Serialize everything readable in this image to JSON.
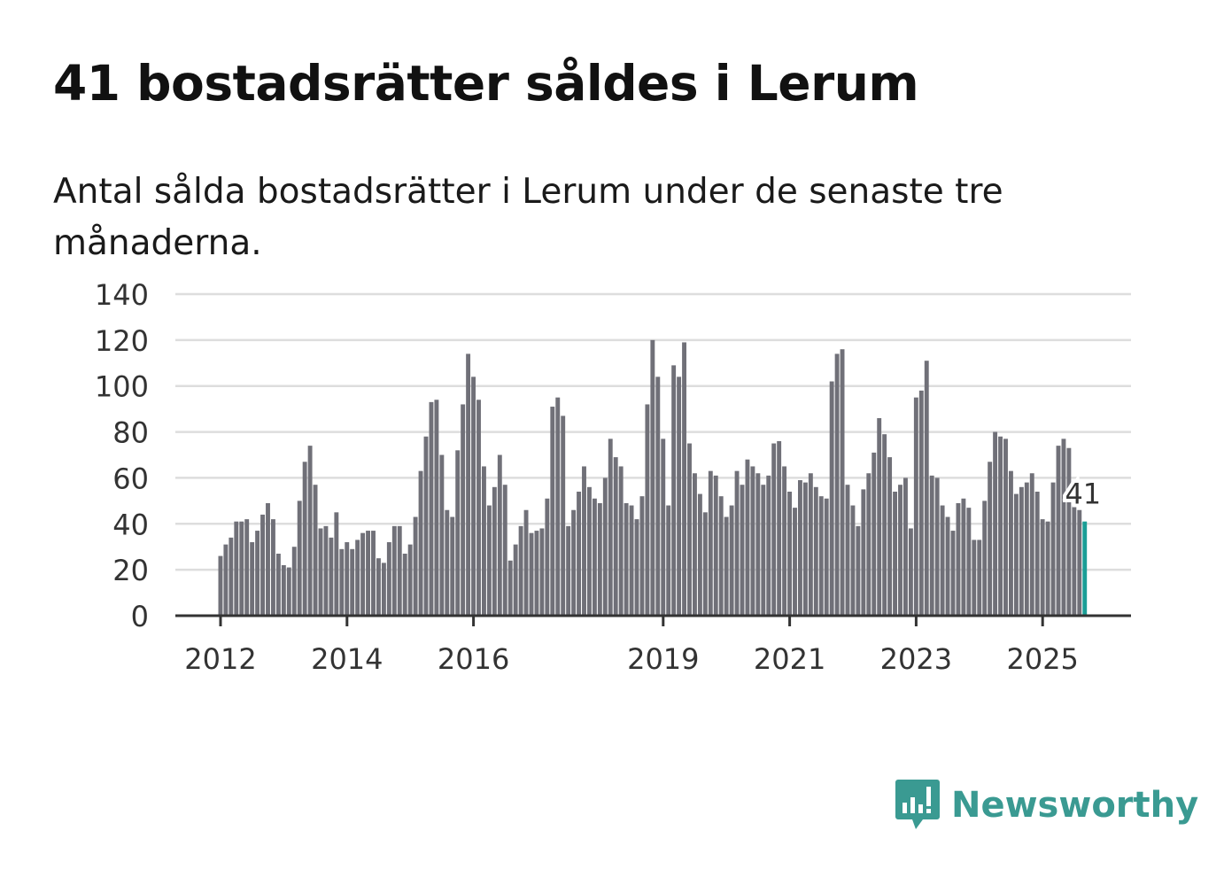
{
  "chart_data": {
    "type": "bar",
    "title": "41 bostadsrätter såldes i Lerum",
    "subtitle": "Antal sålda bostadsrätter i Lerum under de senaste tre månaderna.",
    "start": "2012-01",
    "frequency": "monthly",
    "xlabel": "",
    "ylabel": "",
    "ylim": [
      0,
      140
    ],
    "yticks": [
      "0",
      "20",
      "40",
      "60",
      "80",
      "100",
      "120",
      "140"
    ],
    "xticks": [
      {
        "label": "2012",
        "month_index": 0
      },
      {
        "label": "2014",
        "month_index": 24
      },
      {
        "label": "2016",
        "month_index": 48
      },
      {
        "label": "2019",
        "month_index": 84
      },
      {
        "label": "2021",
        "month_index": 108
      },
      {
        "label": "2023",
        "month_index": 132
      },
      {
        "label": "2025",
        "month_index": 156
      }
    ],
    "grid": true,
    "values": [
      26,
      31,
      34,
      41,
      41,
      42,
      32,
      37,
      44,
      49,
      42,
      27,
      22,
      21,
      30,
      50,
      67,
      74,
      57,
      38,
      39,
      34,
      45,
      29,
      32,
      29,
      33,
      36,
      37,
      37,
      25,
      23,
      32,
      39,
      39,
      27,
      31,
      43,
      63,
      78,
      93,
      94,
      70,
      46,
      43,
      72,
      92,
      114,
      104,
      94,
      65,
      48,
      56,
      70,
      57,
      24,
      31,
      39,
      46,
      36,
      37,
      38,
      51,
      91,
      95,
      87,
      39,
      46,
      54,
      65,
      56,
      51,
      49,
      60,
      77,
      69,
      65,
      49,
      48,
      42,
      52,
      92,
      120,
      104,
      77,
      48,
      109,
      104,
      119,
      75,
      62,
      53,
      45,
      63,
      61,
      52,
      43,
      48,
      63,
      57,
      68,
      65,
      62,
      57,
      61,
      75,
      76,
      65,
      54,
      47,
      59,
      58,
      62,
      56,
      52,
      51,
      102,
      114,
      116,
      57,
      48,
      39,
      55,
      62,
      71,
      86,
      79,
      69,
      54,
      57,
      60,
      38,
      95,
      98,
      111,
      61,
      60,
      48,
      43,
      37,
      49,
      51,
      47,
      33,
      33,
      50,
      67,
      80,
      78,
      77,
      63,
      53,
      56,
      58,
      62,
      54,
      42,
      41,
      58,
      74,
      77,
      73,
      48,
      46,
      41
    ],
    "highlight_label": "41",
    "colors": {
      "bar": "#707078",
      "highlight": "#1a9e96",
      "grid": "#dddddd",
      "axis": "#333333"
    }
  },
  "brand": {
    "name": "Newsworthy",
    "icon": "newsworthy-logo-icon",
    "color": "#3a9a92"
  }
}
